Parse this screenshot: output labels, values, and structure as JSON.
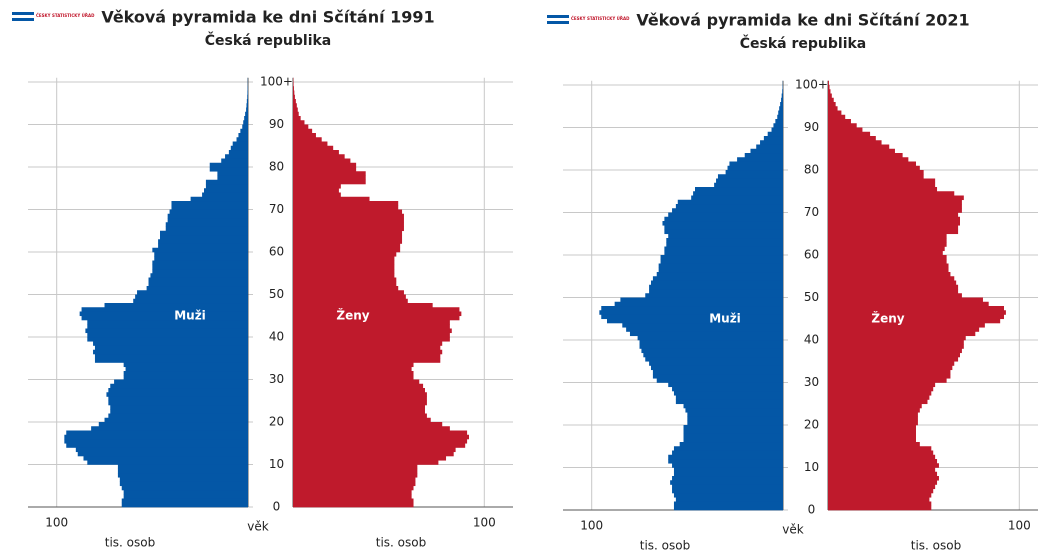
{
  "chart_data": [
    {
      "type": "pyramid",
      "logo": "ČESKÝ STATISTICKÝ ÚŘAD",
      "title": "Věková pyramida ke dni Sčítání 1991",
      "subtitle": "Česká republika",
      "ylabel": "věk",
      "xlabel": "tis. osob",
      "categories": [
        0,
        1,
        2,
        3,
        4,
        5,
        6,
        7,
        8,
        9,
        10,
        11,
        12,
        13,
        14,
        15,
        16,
        17,
        18,
        19,
        20,
        21,
        22,
        23,
        24,
        25,
        26,
        27,
        28,
        29,
        30,
        31,
        32,
        33,
        34,
        35,
        36,
        37,
        38,
        39,
        40,
        41,
        42,
        43,
        44,
        45,
        46,
        47,
        48,
        49,
        50,
        51,
        52,
        53,
        54,
        55,
        56,
        57,
        58,
        59,
        60,
        61,
        62,
        63,
        64,
        65,
        66,
        67,
        68,
        69,
        70,
        71,
        72,
        73,
        74,
        75,
        76,
        77,
        78,
        79,
        80,
        81,
        82,
        83,
        84,
        85,
        86,
        87,
        88,
        89,
        90,
        91,
        92,
        93,
        94,
        95,
        96,
        97,
        98,
        99,
        100
      ],
      "ylim": [
        0,
        101
      ],
      "yticks": [
        0,
        10,
        20,
        30,
        40,
        50,
        60,
        70,
        80,
        90,
        {
          "value": 100,
          "label": "100+"
        }
      ],
      "xlim": [
        0,
        115
      ],
      "xticks": [
        100
      ],
      "grid": true,
      "series": [
        {
          "name": "Muži",
          "color": "#0457a6",
          "side": "left",
          "values": [
            66,
            66,
            65,
            65,
            66,
            67,
            67,
            68,
            68,
            68,
            84,
            86,
            89,
            90,
            95,
            96,
            96,
            95,
            82,
            78,
            75,
            73,
            72,
            72,
            73,
            73,
            74,
            73,
            72,
            70,
            65,
            65,
            64,
            65,
            80,
            80,
            81,
            80,
            81,
            84,
            84,
            85,
            84,
            84,
            87,
            88,
            87,
            75,
            60,
            59,
            58,
            53,
            52,
            52,
            51,
            50,
            50,
            50,
            49,
            49,
            50,
            47,
            47,
            46,
            46,
            43,
            43,
            42,
            42,
            41,
            40,
            40,
            30,
            24,
            23,
            22,
            22,
            16,
            16,
            20,
            20,
            14,
            12,
            10,
            9,
            8,
            6,
            5,
            4,
            3,
            2.5,
            2,
            1.5,
            1,
            0.8,
            0.6,
            0.4,
            0.3,
            0.2,
            0.1,
            0.1
          ]
        },
        {
          "name": "Ženy",
          "color": "#bf1a2c",
          "side": "right",
          "values": [
            63,
            63,
            62,
            62,
            63,
            64,
            64,
            65,
            65,
            65,
            76,
            80,
            84,
            85,
            90,
            91,
            92,
            91,
            82,
            78,
            72,
            70,
            69,
            69,
            70,
            70,
            70,
            69,
            68,
            66,
            63,
            63,
            62,
            63,
            77,
            77,
            78,
            77,
            78,
            82,
            82,
            83,
            82,
            82,
            87,
            88,
            87,
            73,
            60,
            59,
            58,
            55,
            54,
            54,
            53,
            53,
            53,
            53,
            53,
            54,
            56,
            56,
            57,
            57,
            57,
            58,
            58,
            58,
            58,
            57,
            55,
            55,
            40,
            25,
            24,
            25,
            38,
            38,
            38,
            33,
            33,
            30,
            27,
            24,
            21,
            18,
            15,
            12,
            10,
            8,
            6,
            4,
            3,
            2.5,
            2,
            1.5,
            1,
            0.7,
            0.5,
            0.3,
            0.2
          ]
        }
      ]
    },
    {
      "type": "pyramid",
      "logo": "ČESKÝ STATISTICKÝ ÚŘAD",
      "title": "Věková pyramida ke dni Sčítání 2021",
      "subtitle": "Česká republika",
      "ylabel": "věk",
      "xlabel": "tis. osob",
      "categories": [
        0,
        1,
        2,
        3,
        4,
        5,
        6,
        7,
        8,
        9,
        10,
        11,
        12,
        13,
        14,
        15,
        16,
        17,
        18,
        19,
        20,
        21,
        22,
        23,
        24,
        25,
        26,
        27,
        28,
        29,
        30,
        31,
        32,
        33,
        34,
        35,
        36,
        37,
        38,
        39,
        40,
        41,
        42,
        43,
        44,
        45,
        46,
        47,
        48,
        49,
        50,
        51,
        52,
        53,
        54,
        55,
        56,
        57,
        58,
        59,
        60,
        61,
        62,
        63,
        64,
        65,
        66,
        67,
        68,
        69,
        70,
        71,
        72,
        73,
        74,
        75,
        76,
        77,
        78,
        79,
        80,
        81,
        82,
        83,
        84,
        85,
        86,
        87,
        88,
        89,
        90,
        91,
        92,
        93,
        94,
        95,
        96,
        97,
        98,
        99,
        100
      ],
      "ylim": [
        0,
        101
      ],
      "yticks": [
        0,
        10,
        20,
        30,
        40,
        50,
        60,
        70,
        80,
        90,
        {
          "value": 100,
          "label": "100+"
        }
      ],
      "xlim": [
        0,
        115
      ],
      "xticks": [
        100
      ],
      "grid": true,
      "series": [
        {
          "name": "Muži",
          "color": "#0457a6",
          "side": "left",
          "values": [
            57,
            57,
            56,
            57,
            58,
            58,
            59,
            58,
            57,
            57,
            58,
            60,
            60,
            58,
            57,
            54,
            52,
            52,
            52,
            52,
            50,
            50,
            50,
            51,
            52,
            56,
            56,
            57,
            58,
            60,
            66,
            68,
            68,
            69,
            70,
            72,
            73,
            74,
            75,
            75,
            76,
            80,
            82,
            84,
            92,
            95,
            96,
            95,
            88,
            85,
            72,
            70,
            70,
            69,
            68,
            66,
            65,
            65,
            64,
            64,
            62,
            62,
            61,
            61,
            60,
            62,
            62,
            63,
            62,
            60,
            58,
            56,
            55,
            48,
            47,
            46,
            36,
            35,
            34,
            30,
            29,
            28,
            24,
            20,
            17,
            14,
            12,
            10,
            8,
            6,
            5,
            4,
            3,
            2.5,
            2,
            1.5,
            1,
            0.7,
            0.4,
            0.2,
            0.1
          ]
        },
        {
          "name": "Ženy",
          "color": "#bf1a2c",
          "side": "right",
          "values": [
            54,
            54,
            53,
            54,
            55,
            56,
            57,
            58,
            57,
            56,
            58,
            57,
            56,
            55,
            54,
            48,
            46,
            46,
            46,
            46,
            47,
            47,
            47,
            48,
            49,
            52,
            53,
            54,
            55,
            56,
            62,
            64,
            64,
            65,
            66,
            68,
            69,
            70,
            71,
            71,
            72,
            77,
            79,
            82,
            90,
            92,
            93,
            92,
            84,
            81,
            70,
            68,
            68,
            67,
            66,
            64,
            63,
            63,
            62,
            62,
            60,
            61,
            62,
            62,
            62,
            68,
            68,
            69,
            69,
            68,
            70,
            70,
            70,
            71,
            66,
            57,
            56,
            56,
            50,
            50,
            48,
            46,
            42,
            39,
            35,
            32,
            28,
            25,
            22,
            18,
            15,
            12,
            9,
            7,
            5,
            4,
            3,
            2,
            1.3,
            0.8,
            0.5
          ]
        }
      ]
    }
  ]
}
